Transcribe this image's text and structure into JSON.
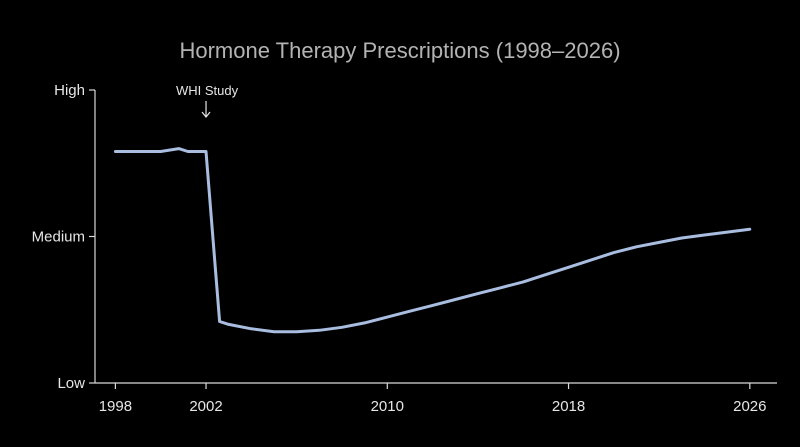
{
  "chart_data": {
    "type": "line",
    "title": "Hormone Therapy Prescriptions (1998–2026)",
    "xlabel": "",
    "ylabel": "",
    "x_ticks": [
      {
        "value": 1998,
        "label": "1998"
      },
      {
        "value": 2002,
        "label": "2002"
      },
      {
        "value": 2010,
        "label": "2010"
      },
      {
        "value": 2018,
        "label": "2018"
      },
      {
        "value": 2026,
        "label": "2026"
      }
    ],
    "y_ticks": [
      {
        "value": 0,
        "label": "Low"
      },
      {
        "value": 50,
        "label": "Medium"
      },
      {
        "value": 100,
        "label": "High"
      }
    ],
    "xlim": [
      1997.1,
      2027.2
    ],
    "ylim": [
      0,
      100
    ],
    "grid": false,
    "legend": "none",
    "line_color": "#a8bde0",
    "series": [
      {
        "x": [
          1998,
          1999,
          2000,
          2000.8,
          2001.2,
          2002,
          2002.6,
          2003,
          2004,
          2005,
          2006,
          2007,
          2008,
          2009,
          2010,
          2011,
          2012,
          2013,
          2014,
          2015,
          2016,
          2017,
          2018,
          2019,
          2020,
          2021,
          2022,
          2023,
          2024,
          2025,
          2026
        ],
        "y": [
          79,
          79,
          79,
          80,
          79,
          79,
          21,
          20,
          18.5,
          17.5,
          17.5,
          18,
          19,
          20.5,
          22.5,
          24.5,
          26.5,
          28.5,
          30.5,
          32.5,
          34.5,
          37,
          39.5,
          42,
          44.5,
          46.5,
          48,
          49.5,
          50.5,
          51.5,
          52.5
        ]
      }
    ],
    "annotations": [
      {
        "x": 2002,
        "text": "WHI Study"
      }
    ]
  }
}
